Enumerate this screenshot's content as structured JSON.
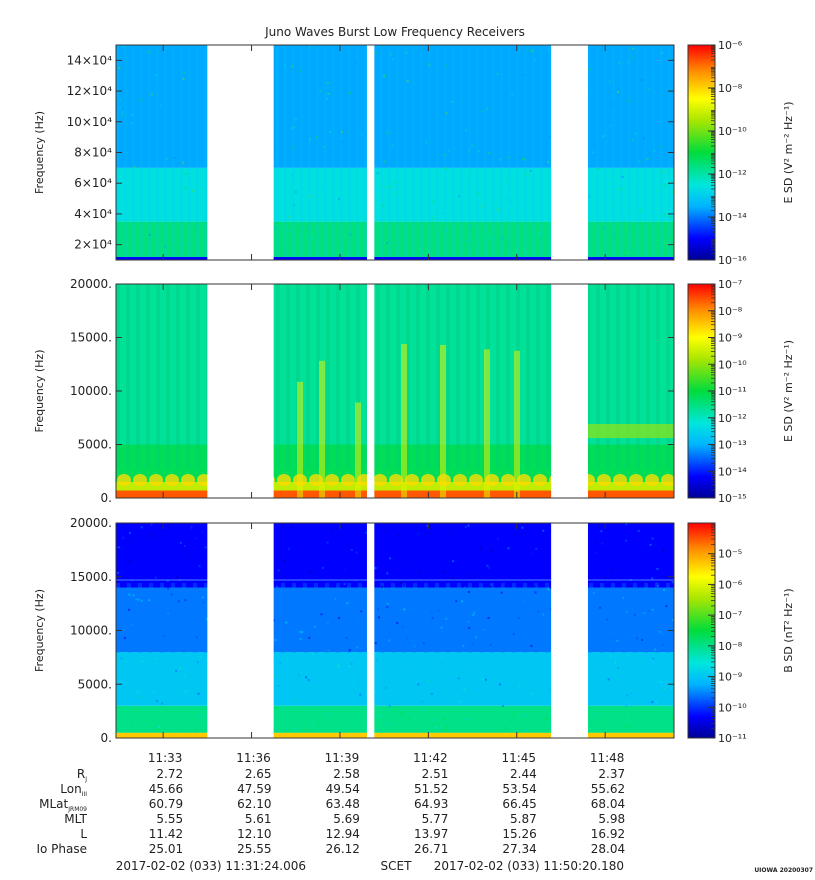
{
  "figure": {
    "title": "Juno Waves Burst Low Frequency Receivers",
    "stamp": "UIOWA 20200307"
  },
  "chart_data": [
    {
      "type": "heatmap",
      "name": "panel-1",
      "ylabel": "Frequency (Hz)",
      "ylim": [
        10000,
        150000
      ],
      "yticks": [
        20000,
        40000,
        60000,
        80000,
        100000,
        120000,
        140000
      ],
      "ytick_labels": [
        "2×10⁴",
        "4×10⁴",
        "6×10⁴",
        "8×10⁴",
        "10×10⁴",
        "12×10⁴",
        "14×10⁴"
      ],
      "colorbar": {
        "label": "E SD (V² m⁻² Hz⁻¹)",
        "log_min": -16,
        "log_max": -6,
        "tick_exponents": [
          -6,
          -8,
          -10,
          -12,
          -14,
          -16
        ],
        "tick_labels": [
          "10⁻⁶",
          "10⁻⁸",
          "10⁻¹⁰",
          "10⁻¹²",
          "10⁻¹⁴",
          "10⁻¹⁶"
        ],
        "fill": "full"
      },
      "style": "efield-high",
      "bands": [
        {
          "from": 10000,
          "to": 35000,
          "log_level": -11.6
        },
        {
          "from": 35000,
          "to": 70000,
          "log_level": -12.6
        },
        {
          "from": 70000,
          "to": 150000,
          "log_level": -13.6
        }
      ]
    },
    {
      "type": "heatmap",
      "name": "panel-2",
      "ylabel": "Frequency (Hz)",
      "ylim": [
        0,
        20000
      ],
      "yticks": [
        0,
        5000,
        10000,
        15000,
        20000
      ],
      "ytick_labels": [
        "0.",
        "5000.",
        "10000.",
        "15000.",
        "20000."
      ],
      "colorbar": {
        "label": "E SD (V² m⁻² Hz⁻¹)",
        "log_min": -15,
        "log_max": -7,
        "tick_exponents": [
          -7,
          -8,
          -9,
          -10,
          -11,
          -12,
          -13,
          -14,
          -15
        ],
        "tick_labels": [
          "10⁻⁷",
          "10⁻⁸",
          "10⁻⁹",
          "10⁻¹⁰",
          "10⁻¹¹",
          "10⁻¹²",
          "10⁻¹³",
          "10⁻¹⁴",
          "10⁻¹⁵"
        ],
        "fill": "full"
      },
      "style": "efield-low",
      "bands": [
        {
          "from": 0,
          "to": 700,
          "log_level": -7.6
        },
        {
          "from": 700,
          "to": 1500,
          "log_level": -9.6
        },
        {
          "from": 1500,
          "to": 5000,
          "log_level": -11.2
        },
        {
          "from": 5000,
          "to": 20000,
          "log_level": -11.7
        }
      ]
    },
    {
      "type": "heatmap",
      "name": "panel-3",
      "ylabel": "Frequency (Hz)",
      "ylim": [
        0,
        20000
      ],
      "yticks": [
        0,
        5000,
        10000,
        15000,
        20000
      ],
      "ytick_labels": [
        "0.",
        "5000.",
        "10000.",
        "15000.",
        "20000."
      ],
      "colorbar": {
        "label": "B SD (nT² Hz⁻¹)",
        "log_min": -11,
        "log_max": -4,
        "tick_exponents": [
          -5,
          -6,
          -7,
          -8,
          -9,
          -10,
          -11
        ],
        "tick_labels": [
          "10⁻⁵",
          "10⁻⁶",
          "10⁻⁷",
          "10⁻⁸",
          "10⁻⁹",
          "10⁻¹⁰",
          "10⁻¹¹"
        ],
        "fill": "full"
      },
      "style": "bfield",
      "bands": [
        {
          "from": 0,
          "to": 500,
          "log_level": -6.8
        },
        {
          "from": 500,
          "to": 3000,
          "log_level": -8.0
        },
        {
          "from": 3000,
          "to": 8000,
          "log_level": -9.0
        },
        {
          "from": 8000,
          "to": 14000,
          "log_level": -9.6
        },
        {
          "from": 14000,
          "to": 20000,
          "log_level": -10.3
        }
      ]
    }
  ],
  "time_axis": {
    "start_label": "2017-02-02 (033) 11:31:24.006",
    "scet_label": "SCET",
    "end_label": "2017-02-02 (033) 11:50:20.180",
    "ticks": [
      "11:33",
      "11:36",
      "11:39",
      "11:42",
      "11:45",
      "11:48"
    ],
    "data_gaps": [
      {
        "from": "11:34:30",
        "to": "11:36:45"
      },
      {
        "from": "11:39:55",
        "to": "11:40:10"
      },
      {
        "from": "11:46:10",
        "to": "11:47:25"
      }
    ]
  },
  "ephemeris": {
    "rows": [
      {
        "label": "R",
        "sub": "J",
        "values": [
          "2.72",
          "2.65",
          "2.58",
          "2.51",
          "2.44",
          "2.37"
        ]
      },
      {
        "label": "Lon",
        "sub": "III",
        "values": [
          "45.66",
          "47.59",
          "49.54",
          "51.52",
          "53.54",
          "55.62"
        ]
      },
      {
        "label": "MLat",
        "sub": "JRM09",
        "values": [
          "60.79",
          "62.10",
          "63.48",
          "64.93",
          "66.45",
          "68.04"
        ]
      },
      {
        "label": "MLT",
        "sub": "",
        "values": [
          "5.55",
          "5.61",
          "5.69",
          "5.77",
          "5.87",
          "5.98"
        ]
      },
      {
        "label": "L",
        "sub": "",
        "values": [
          "11.42",
          "12.10",
          "12.94",
          "13.97",
          "15.26",
          "16.92"
        ]
      },
      {
        "label": "Io Phase",
        "sub": "",
        "values": [
          "25.01",
          "25.55",
          "26.12",
          "26.71",
          "27.34",
          "28.04"
        ]
      }
    ]
  }
}
